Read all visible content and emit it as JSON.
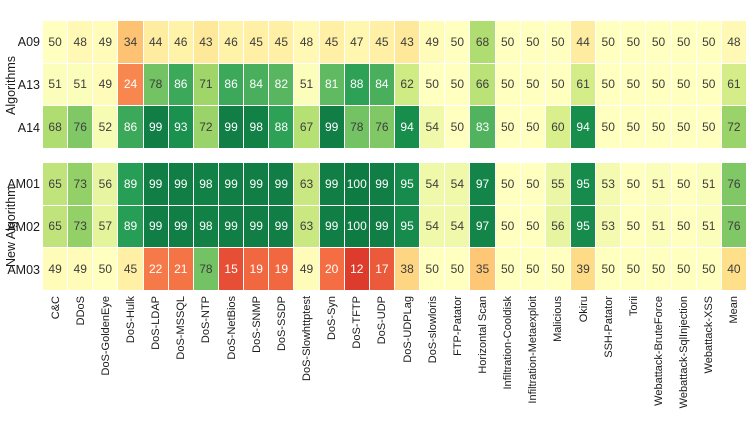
{
  "chart_data": {
    "type": "heatmap",
    "title": "",
    "xlabel": "",
    "ylabel_facets": [
      "Algorithms",
      "New Algorithm"
    ],
    "value_range": [
      0,
      100
    ],
    "legend": "none",
    "columns": [
      "C&C",
      "DDoS",
      "DoS-GoldenEye",
      "DoS-Hulk",
      "DoS-LDAP",
      "DoS-MSSQL",
      "DoS-NTP",
      "DoS-NetBios",
      "DoS-SNMP",
      "DoS-SSDP",
      "DoS-Slowhttptest",
      "DoS-Syn",
      "DoS-TFTP",
      "DoS-UDP",
      "DoS-UDPLag",
      "DoS-slowloris",
      "FTP-Patator",
      "Horizontal Scan",
      "Infiltration-Cooldisk",
      "Infiltration-Metaexploit",
      "Malicious",
      "Okiru",
      "SSH-Patator",
      "Torii",
      "Webattack-BruteForce",
      "Webattack-SqlInjection",
      "Webattack-XSS",
      "Mean"
    ],
    "facets": [
      {
        "label": "Algorithms",
        "rows": [
          {
            "name": "A09",
            "values": [
              50,
              48,
              49,
              34,
              44,
              46,
              43,
              46,
              45,
              45,
              48,
              45,
              47,
              45,
              43,
              49,
              50,
              68,
              50,
              50,
              50,
              44,
              50,
              50,
              50,
              50,
              50,
              48
            ]
          },
          {
            "name": "A13",
            "values": [
              51,
              51,
              49,
              24,
              78,
              86,
              71,
              86,
              84,
              82,
              51,
              81,
              88,
              84,
              62,
              50,
              50,
              66,
              50,
              50,
              50,
              61,
              50,
              50,
              50,
              50,
              50,
              61
            ]
          },
          {
            "name": "A14",
            "values": [
              68,
              76,
              52,
              86,
              99,
              93,
              72,
              99,
              98,
              88,
              67,
              99,
              78,
              76,
              94,
              54,
              50,
              83,
              50,
              50,
              60,
              94,
              50,
              50,
              50,
              50,
              50,
              72
            ]
          }
        ]
      },
      {
        "label": "New Algorithm",
        "rows": [
          {
            "name": "AM01",
            "values": [
              65,
              73,
              56,
              89,
              99,
              99,
              98,
              99,
              99,
              99,
              63,
              99,
              100,
              99,
              95,
              54,
              54,
              97,
              50,
              50,
              55,
              95,
              53,
              50,
              51,
              50,
              51,
              76
            ]
          },
          {
            "name": "AM02",
            "values": [
              65,
              73,
              57,
              89,
              99,
              99,
              98,
              99,
              99,
              99,
              63,
              99,
              100,
              99,
              95,
              54,
              54,
              97,
              50,
              50,
              56,
              95,
              53,
              50,
              51,
              50,
              51,
              76
            ]
          },
          {
            "name": "AM03",
            "values": [
              49,
              49,
              50,
              45,
              22,
              21,
              78,
              15,
              19,
              19,
              49,
              20,
              12,
              17,
              38,
              50,
              50,
              35,
              50,
              50,
              50,
              39,
              50,
              50,
              50,
              50,
              50,
              40
            ]
          }
        ]
      }
    ],
    "colormap": {
      "name": "RdYlGn",
      "stops": [
        [
          0,
          "#a50026"
        ],
        [
          10,
          "#d73027"
        ],
        [
          20,
          "#f46d43"
        ],
        [
          30,
          "#fdae61"
        ],
        [
          40,
          "#fee08b"
        ],
        [
          50,
          "#ffffbf"
        ],
        [
          60,
          "#d9ef8b"
        ],
        [
          70,
          "#a6d96a"
        ],
        [
          80,
          "#66bd63"
        ],
        [
          90,
          "#1f9b53"
        ],
        [
          100,
          "#0e7b43"
        ]
      ]
    },
    "cell_text_colors": {
      "dark": "#3d3d3d",
      "light": "#ffffff"
    },
    "axis_text_color": "#1a1a1a",
    "background_color": "#ffffff"
  }
}
